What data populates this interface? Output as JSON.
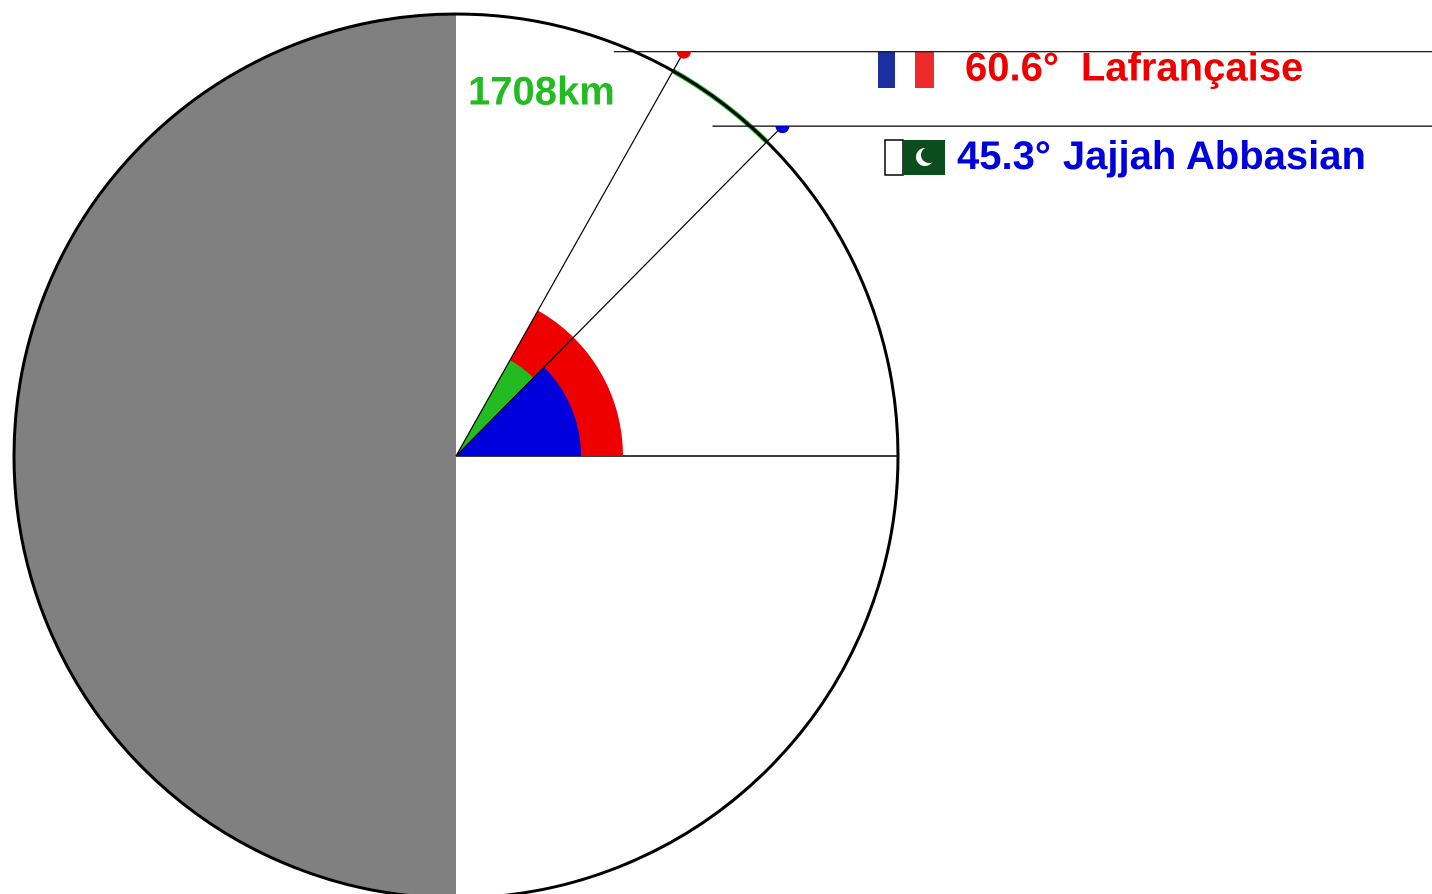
{
  "distance": {
    "label": "1708km",
    "color": "#22bb22"
  },
  "places": [
    {
      "name": "Lafrançaise",
      "angle": 60.6,
      "angle_label": "60.6°",
      "color": "#ee0000"
    },
    {
      "name": "Jajjah Abbasian",
      "angle": 45.3,
      "angle_label": "45.3°",
      "color": "#0000dd"
    }
  ]
}
